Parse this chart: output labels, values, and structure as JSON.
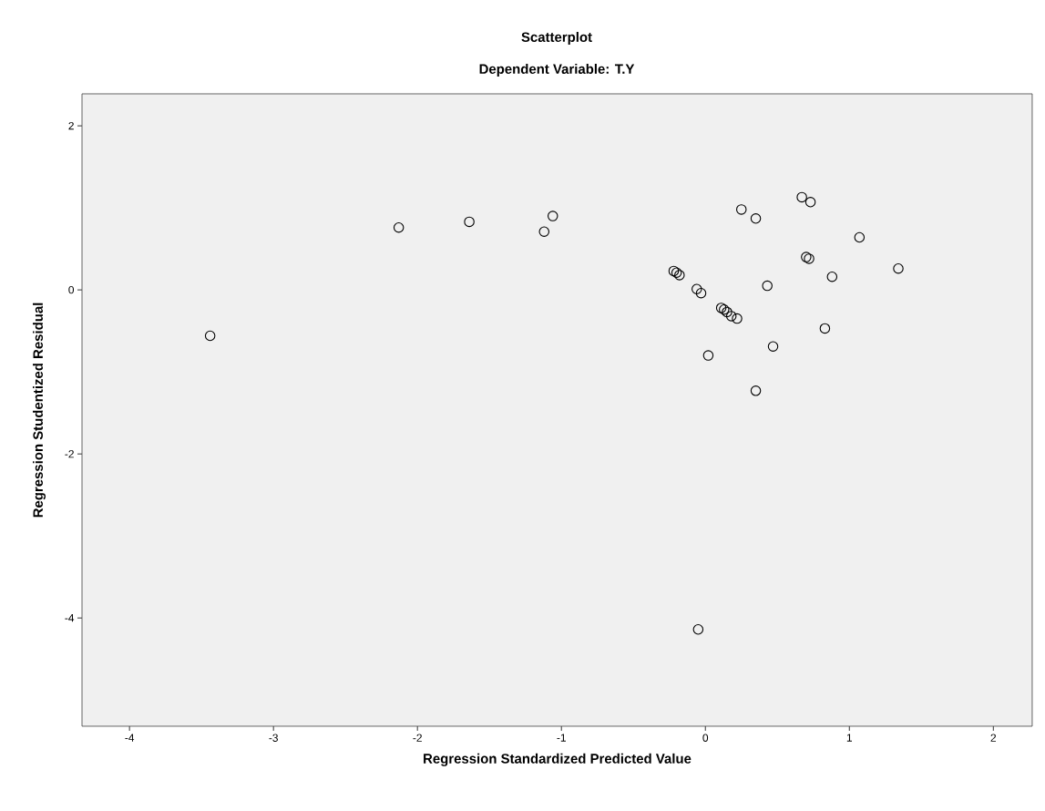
{
  "chart_data": {
    "type": "scatter",
    "title": "Scatterplot",
    "subtitle": "Dependent Variable: T.Y",
    "xlabel": "Regression Standardized Predicted Value",
    "ylabel": "Regression Studentized Residual",
    "x": [
      -3.44,
      -2.13,
      -1.64,
      -1.06,
      -1.12,
      0.25,
      0.35,
      0.67,
      0.73,
      1.07,
      1.34,
      0.7,
      0.72,
      0.88,
      0.43,
      -0.22,
      -0.2,
      -0.18,
      -0.06,
      -0.03,
      0.11,
      0.13,
      0.15,
      0.18,
      0.22,
      0.83,
      0.47,
      0.02,
      0.35,
      -0.05
    ],
    "values": [
      -0.56,
      0.76,
      0.83,
      0.9,
      0.71,
      0.98,
      0.87,
      1.13,
      1.07,
      0.64,
      0.26,
      0.4,
      0.38,
      0.16,
      0.05,
      0.23,
      0.21,
      0.18,
      0.01,
      -0.04,
      -0.22,
      -0.24,
      -0.27,
      -0.32,
      -0.35,
      -0.47,
      -0.69,
      -0.8,
      -1.23,
      -4.14
    ],
    "color": "#000000",
    "marker": "circle",
    "grid": false,
    "xlim": [
      -4.33,
      2.27
    ],
    "ylim": [
      -5.32,
      2.39
    ],
    "xticks": [
      -4,
      -3,
      -2,
      -1,
      0,
      1,
      2
    ],
    "yticks": [
      -4,
      -2,
      0,
      2
    ]
  }
}
